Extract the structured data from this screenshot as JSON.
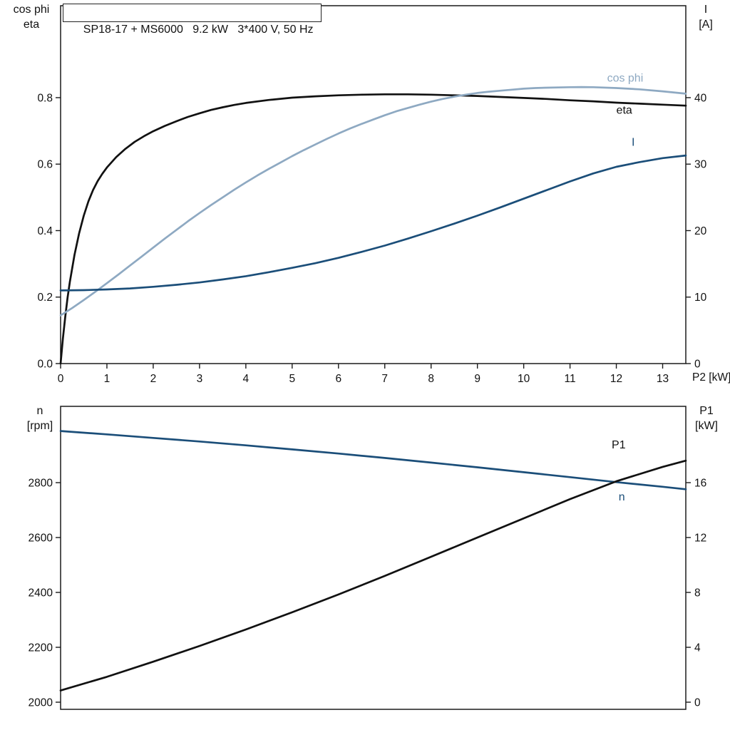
{
  "title_box": {
    "text": "SP18-17 + MS6000   9.2 kW   3*400 V, 50 Hz"
  },
  "colors": {
    "black": "#111111",
    "steel": "#8ea9c2",
    "blue": "#1b4e79",
    "frame": "#1a1a1a"
  },
  "chart_data": [
    {
      "type": "line",
      "title": "SP18-17 + MS6000   9.2 kW   3*400 V, 50 Hz",
      "x_axis": {
        "label": "P2 [kW]",
        "min": 0,
        "max": 13.5,
        "ticks": [
          {
            "v": 0,
            "t": "0"
          },
          {
            "v": 1,
            "t": "1"
          },
          {
            "v": 2,
            "t": "2"
          },
          {
            "v": 3,
            "t": "3"
          },
          {
            "v": 4,
            "t": "4"
          },
          {
            "v": 5,
            "t": "5"
          },
          {
            "v": 6,
            "t": "6"
          },
          {
            "v": 7,
            "t": "7"
          },
          {
            "v": 8,
            "t": "8"
          },
          {
            "v": 9,
            "t": "9"
          },
          {
            "v": 10,
            "t": "10"
          },
          {
            "v": 11,
            "t": "11"
          },
          {
            "v": 12,
            "t": "12"
          },
          {
            "v": 13,
            "t": "13"
          }
        ]
      },
      "left_axis": {
        "header": [
          "cos phi",
          "eta"
        ],
        "min": 0,
        "max": 1.0766,
        "ticks": [
          {
            "v": 0,
            "t": "0.0"
          },
          {
            "v": 0.2,
            "t": "0.2"
          },
          {
            "v": 0.4,
            "t": "0.4"
          },
          {
            "v": 0.6,
            "t": "0.6"
          },
          {
            "v": 0.8,
            "t": "0.8"
          }
        ]
      },
      "right_axis": {
        "header": [
          "I",
          "[A]"
        ],
        "min": 0,
        "max": 53.83,
        "ticks": [
          {
            "v": 0,
            "t": "0"
          },
          {
            "v": 10,
            "t": "10"
          },
          {
            "v": 20,
            "t": "20"
          },
          {
            "v": 30,
            "t": "30"
          },
          {
            "v": 40,
            "t": "40"
          }
        ]
      },
      "series": [
        {
          "name": "eta",
          "axis": "left",
          "color": "black",
          "points": [
            [
              0,
              0
            ],
            [
              0.05,
              0.075
            ],
            [
              0.1,
              0.14
            ],
            [
              0.15,
              0.197
            ],
            [
              0.2,
              0.246
            ],
            [
              0.3,
              0.327
            ],
            [
              0.4,
              0.392
            ],
            [
              0.5,
              0.445
            ],
            [
              0.6,
              0.488
            ],
            [
              0.7,
              0.522
            ],
            [
              0.8,
              0.549
            ],
            [
              0.9,
              0.571
            ],
            [
              1,
              0.59
            ],
            [
              1.2,
              0.621
            ],
            [
              1.4,
              0.646
            ],
            [
              1.6,
              0.667
            ],
            [
              1.8,
              0.684
            ],
            [
              2,
              0.699
            ],
            [
              2.25,
              0.715
            ],
            [
              2.5,
              0.729
            ],
            [
              2.75,
              0.742
            ],
            [
              3,
              0.753
            ],
            [
              3.25,
              0.763
            ],
            [
              3.5,
              0.771
            ],
            [
              3.75,
              0.778
            ],
            [
              4,
              0.784
            ],
            [
              4.5,
              0.793
            ],
            [
              5,
              0.8
            ],
            [
              5.5,
              0.804
            ],
            [
              6,
              0.807
            ],
            [
              6.5,
              0.809
            ],
            [
              7,
              0.81
            ],
            [
              7.5,
              0.81
            ],
            [
              8,
              0.809
            ],
            [
              8.5,
              0.807
            ],
            [
              9,
              0.805
            ],
            [
              9.5,
              0.802
            ],
            [
              10,
              0.799
            ],
            [
              10.5,
              0.796
            ],
            [
              11,
              0.792
            ],
            [
              11.5,
              0.789
            ],
            [
              12,
              0.785
            ],
            [
              12.5,
              0.782
            ],
            [
              13,
              0.779
            ],
            [
              13.5,
              0.776
            ]
          ]
        },
        {
          "name": "cos phi",
          "axis": "left",
          "color": "steel",
          "points": [
            [
              0,
              0.145
            ],
            [
              0.25,
              0.167
            ],
            [
              0.5,
              0.191
            ],
            [
              0.75,
              0.216
            ],
            [
              1,
              0.242
            ],
            [
              1.25,
              0.268
            ],
            [
              1.5,
              0.295
            ],
            [
              1.75,
              0.322
            ],
            [
              2,
              0.349
            ],
            [
              2.25,
              0.376
            ],
            [
              2.5,
              0.402
            ],
            [
              2.75,
              0.428
            ],
            [
              3,
              0.453
            ],
            [
              3.25,
              0.477
            ],
            [
              3.5,
              0.5
            ],
            [
              3.75,
              0.523
            ],
            [
              4,
              0.545
            ],
            [
              4.25,
              0.566
            ],
            [
              4.5,
              0.586
            ],
            [
              4.75,
              0.605
            ],
            [
              5,
              0.624
            ],
            [
              5.25,
              0.642
            ],
            [
              5.5,
              0.659
            ],
            [
              5.75,
              0.676
            ],
            [
              6,
              0.692
            ],
            [
              6.25,
              0.707
            ],
            [
              6.5,
              0.721
            ],
            [
              6.75,
              0.734
            ],
            [
              7,
              0.747
            ],
            [
              7.25,
              0.759
            ],
            [
              7.5,
              0.769
            ],
            [
              7.75,
              0.779
            ],
            [
              8,
              0.788
            ],
            [
              8.25,
              0.796
            ],
            [
              8.5,
              0.803
            ],
            [
              8.75,
              0.809
            ],
            [
              9,
              0.814
            ],
            [
              9.25,
              0.818
            ],
            [
              9.5,
              0.821
            ],
            [
              9.75,
              0.824
            ],
            [
              10,
              0.827
            ],
            [
              10.25,
              0.829
            ],
            [
              10.5,
              0.83
            ],
            [
              11,
              0.8315
            ],
            [
              11.25,
              0.832
            ],
            [
              11.5,
              0.8315
            ],
            [
              12,
              0.829
            ],
            [
              12.5,
              0.825
            ],
            [
              13,
              0.819
            ],
            [
              13.5,
              0.812
            ]
          ]
        },
        {
          "name": "I",
          "axis": "right",
          "color": "blue",
          "points": [
            [
              0,
              11
            ],
            [
              0.5,
              11.05
            ],
            [
              1,
              11.15
            ],
            [
              1.5,
              11.3
            ],
            [
              2,
              11.55
            ],
            [
              2.5,
              11.85
            ],
            [
              3,
              12.2
            ],
            [
              3.5,
              12.65
            ],
            [
              4,
              13.15
            ],
            [
              4.5,
              13.75
            ],
            [
              5,
              14.4
            ],
            [
              5.5,
              15.1
            ],
            [
              6,
              15.9
            ],
            [
              6.5,
              16.8
            ],
            [
              7,
              17.75
            ],
            [
              7.5,
              18.8
            ],
            [
              8,
              19.9
            ],
            [
              8.5,
              21.05
            ],
            [
              9,
              22.25
            ],
            [
              9.5,
              23.5
            ],
            [
              10,
              24.8
            ],
            [
              10.5,
              26.1
            ],
            [
              11,
              27.4
            ],
            [
              11.5,
              28.6
            ],
            [
              12,
              29.6
            ],
            [
              12.5,
              30.3
            ],
            [
              13,
              30.9
            ],
            [
              13.5,
              31.3
            ]
          ]
        }
      ],
      "annotations": [
        {
          "text": "cos phi",
          "color": "steel",
          "x": 11.8,
          "v": 0.848
        },
        {
          "text": "eta",
          "color": "black",
          "x": 12.0,
          "v": 0.752
        },
        {
          "text": "I",
          "color": "blue",
          "x": 12.33,
          "v": 0.655
        }
      ]
    },
    {
      "type": "line",
      "title": "",
      "x_axis": {
        "label": "",
        "min": 0,
        "max": 13.5,
        "ticks": []
      },
      "left_axis": {
        "header": [
          "n",
          "[rpm]"
        ],
        "min": 1974,
        "max": 3078,
        "ticks": [
          {
            "v": 2000,
            "t": "2000"
          },
          {
            "v": 2200,
            "t": "2200"
          },
          {
            "v": 2400,
            "t": "2400"
          },
          {
            "v": 2600,
            "t": "2600"
          },
          {
            "v": 2800,
            "t": "2800"
          }
        ]
      },
      "right_axis": {
        "header": [
          "P1",
          "[kW]"
        ],
        "min": -0.52,
        "max": 21.56,
        "ticks": [
          {
            "v": 0,
            "t": "0"
          },
          {
            "v": 4,
            "t": "4"
          },
          {
            "v": 8,
            "t": "8"
          },
          {
            "v": 12,
            "t": "12"
          },
          {
            "v": 16,
            "t": "16"
          }
        ]
      },
      "series": [
        {
          "name": "n",
          "axis": "left",
          "color": "blue",
          "points": [
            [
              0,
              2988
            ],
            [
              1,
              2976
            ],
            [
              2,
              2963
            ],
            [
              3,
              2950
            ],
            [
              4,
              2936
            ],
            [
              5,
              2921
            ],
            [
              6,
              2906
            ],
            [
              7,
              2890
            ],
            [
              8,
              2873
            ],
            [
              9,
              2856
            ],
            [
              10,
              2838
            ],
            [
              11,
              2820
            ],
            [
              12,
              2802
            ],
            [
              13,
              2785
            ],
            [
              13.5,
              2776
            ]
          ]
        },
        {
          "name": "P1",
          "axis": "right",
          "color": "black",
          "points": [
            [
              0,
              0.85
            ],
            [
              1,
              1.85
            ],
            [
              2,
              2.95
            ],
            [
              3,
              4.1
            ],
            [
              4,
              5.3
            ],
            [
              5,
              6.55
            ],
            [
              6,
              7.85
            ],
            [
              7,
              9.2
            ],
            [
              8,
              10.6
            ],
            [
              9,
              12
            ],
            [
              10,
              13.4
            ],
            [
              11,
              14.8
            ],
            [
              12,
              16.1
            ],
            [
              13,
              17.15
            ],
            [
              13.5,
              17.6
            ]
          ]
        }
      ],
      "annotations": [
        {
          "text": "P1",
          "color": "black",
          "x": 11.9,
          "v": 2925
        },
        {
          "text": "n",
          "color": "blue",
          "x": 12.05,
          "v": 2735
        }
      ]
    }
  ]
}
